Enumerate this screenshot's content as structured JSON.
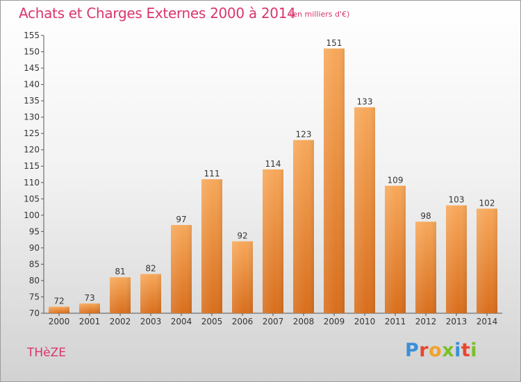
{
  "header": {
    "title": "Achats et Charges Externes 2000 à 2014",
    "subtitle": "(en milliers d'€)"
  },
  "footer": {
    "place": "THèZE",
    "logo": {
      "letters": [
        "P",
        "r",
        "o",
        "x",
        "i",
        "t",
        "i"
      ]
    }
  },
  "colors": {
    "title": "#d9366a",
    "bar_light": "#f7a85a",
    "bar_dark": "#d86e1c"
  },
  "chart_data": {
    "type": "bar",
    "title": "Achats et Charges Externes 2000 à 2014",
    "subtitle": "(en milliers d'€)",
    "xlabel": "",
    "ylabel": "",
    "categories": [
      "2000",
      "2001",
      "2002",
      "2003",
      "2004",
      "2005",
      "2006",
      "2007",
      "2008",
      "2009",
      "2010",
      "2011",
      "2012",
      "2013",
      "2014"
    ],
    "values": [
      72,
      73,
      81,
      82,
      97,
      111,
      92,
      114,
      123,
      151,
      133,
      109,
      98,
      103,
      102
    ],
    "ylim": [
      70,
      155
    ],
    "yticks": [
      70,
      75,
      80,
      85,
      90,
      95,
      100,
      105,
      110,
      115,
      120,
      125,
      130,
      135,
      140,
      145,
      150,
      155
    ],
    "grid": false,
    "legend": "none"
  }
}
